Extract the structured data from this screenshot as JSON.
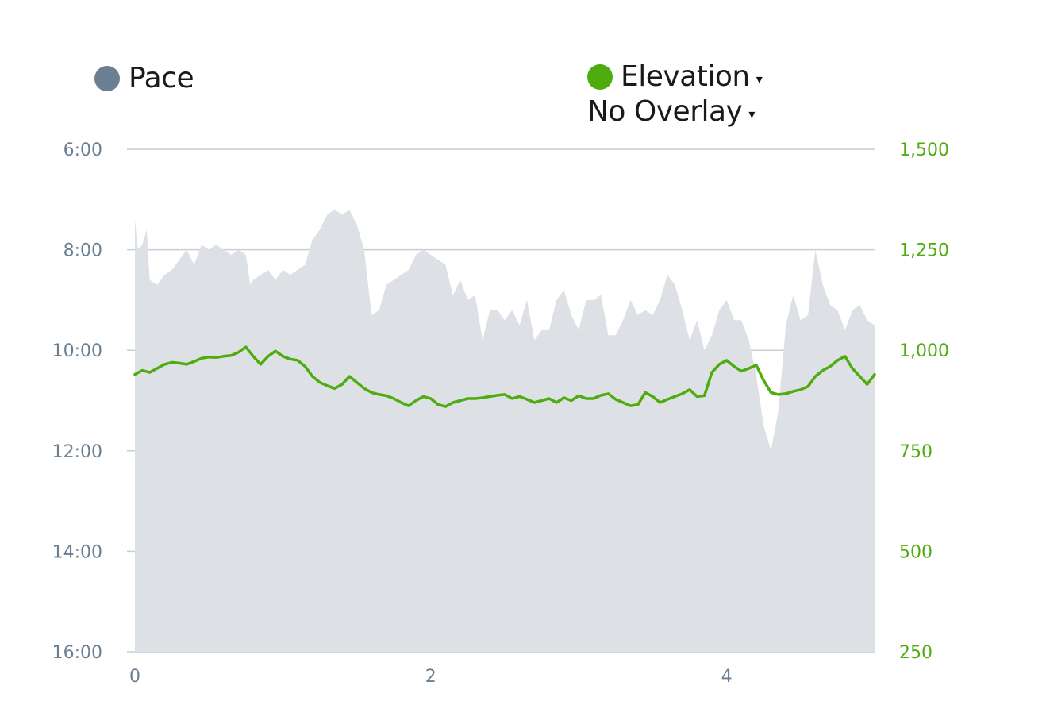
{
  "legend": {
    "pace_label": "Pace",
    "elevation_label": "Elevation",
    "overlay_label": "No Overlay",
    "caret": "▾"
  },
  "colors": {
    "pace_dot": "#6b7f92",
    "pace_fill": "#dde1e5",
    "elevation": "#4eac0e",
    "grid": "#c9ced3",
    "left_axis_text": "#6b7f92",
    "right_axis_text": "#4eac0e",
    "x_axis_text": "#6b7f92"
  },
  "chart_data": {
    "type": "area",
    "y_left": {
      "label": "",
      "ticks": [
        "6:00",
        "8:00",
        "10:00",
        "12:00",
        "14:00",
        "16:00"
      ],
      "tick_values_min": [
        6,
        8,
        10,
        12,
        14,
        16
      ],
      "range_min": [
        6,
        16
      ],
      "inverted": true
    },
    "y_right": {
      "label": "",
      "ticks": [
        "1,500",
        "1,250",
        "1,000",
        "750",
        "500",
        "250"
      ],
      "tick_values": [
        1500,
        1250,
        1000,
        750,
        500,
        250
      ],
      "range": [
        250,
        1500
      ]
    },
    "x": {
      "label": "",
      "ticks": [
        "0",
        "2",
        "4"
      ],
      "tick_values": [
        0,
        2,
        4
      ],
      "range": [
        0,
        5
      ]
    },
    "grid": true,
    "series": [
      {
        "name": "Pace",
        "type": "area",
        "axis": "left",
        "x": [
          0,
          0.02,
          0.05,
          0.08,
          0.1,
          0.15,
          0.2,
          0.25,
          0.3,
          0.35,
          0.4,
          0.45,
          0.5,
          0.55,
          0.6,
          0.65,
          0.7,
          0.75,
          0.78,
          0.8,
          0.85,
          0.9,
          0.95,
          1.0,
          1.05,
          1.1,
          1.15,
          1.2,
          1.25,
          1.3,
          1.35,
          1.4,
          1.45,
          1.5,
          1.55,
          1.6,
          1.65,
          1.7,
          1.75,
          1.8,
          1.85,
          1.9,
          1.95,
          2.0,
          2.05,
          2.1,
          2.15,
          2.2,
          2.25,
          2.3,
          2.35,
          2.4,
          2.45,
          2.5,
          2.55,
          2.6,
          2.65,
          2.7,
          2.75,
          2.8,
          2.85,
          2.9,
          2.95,
          3.0,
          3.05,
          3.1,
          3.15,
          3.2,
          3.25,
          3.3,
          3.35,
          3.4,
          3.45,
          3.5,
          3.55,
          3.6,
          3.65,
          3.7,
          3.75,
          3.8,
          3.85,
          3.9,
          3.95,
          4.0,
          4.05,
          4.1,
          4.15,
          4.2,
          4.25,
          4.3,
          4.35,
          4.4,
          4.45,
          4.5,
          4.55,
          4.6,
          4.65,
          4.7,
          4.75,
          4.8,
          4.85,
          4.9,
          4.95,
          5.0
        ],
        "values": [
          7.4,
          8.0,
          7.9,
          7.6,
          8.6,
          8.7,
          8.5,
          8.4,
          8.2,
          8.0,
          8.3,
          7.9,
          8.0,
          7.9,
          8.0,
          8.1,
          8.0,
          8.1,
          8.7,
          8.6,
          8.5,
          8.4,
          8.6,
          8.4,
          8.5,
          8.4,
          8.3,
          7.8,
          7.6,
          7.3,
          7.2,
          7.3,
          7.2,
          7.5,
          8.0,
          9.3,
          9.2,
          8.7,
          8.6,
          8.5,
          8.4,
          8.1,
          8.0,
          8.1,
          8.2,
          8.3,
          8.9,
          8.6,
          9.0,
          8.9,
          9.8,
          9.2,
          9.2,
          9.4,
          9.2,
          9.5,
          9.0,
          9.8,
          9.6,
          9.6,
          9.0,
          8.8,
          9.3,
          9.6,
          9.0,
          9.0,
          8.9,
          9.7,
          9.7,
          9.4,
          9.0,
          9.3,
          9.2,
          9.3,
          9.0,
          8.5,
          8.7,
          9.2,
          9.8,
          9.4,
          10.0,
          9.7,
          9.2,
          9.0,
          9.4,
          9.4,
          9.8,
          10.5,
          11.5,
          12.0,
          11.2,
          9.5,
          8.9,
          9.4,
          9.3,
          8.0,
          8.7,
          9.1,
          9.2,
          9.6,
          9.2,
          9.1,
          9.4,
          9.5
        ]
      },
      {
        "name": "Elevation",
        "type": "line",
        "axis": "right",
        "x": [
          0,
          0.05,
          0.1,
          0.15,
          0.2,
          0.25,
          0.3,
          0.35,
          0.4,
          0.45,
          0.5,
          0.55,
          0.6,
          0.65,
          0.7,
          0.75,
          0.8,
          0.85,
          0.9,
          0.95,
          1.0,
          1.05,
          1.1,
          1.15,
          1.2,
          1.25,
          1.3,
          1.35,
          1.4,
          1.45,
          1.5,
          1.55,
          1.6,
          1.65,
          1.7,
          1.75,
          1.8,
          1.85,
          1.9,
          1.95,
          2.0,
          2.05,
          2.1,
          2.15,
          2.2,
          2.25,
          2.3,
          2.35,
          2.4,
          2.45,
          2.5,
          2.55,
          2.6,
          2.65,
          2.7,
          2.75,
          2.8,
          2.85,
          2.9,
          2.95,
          3.0,
          3.05,
          3.1,
          3.15,
          3.2,
          3.25,
          3.3,
          3.35,
          3.4,
          3.45,
          3.5,
          3.55,
          3.6,
          3.65,
          3.7,
          3.75,
          3.8,
          3.85,
          3.9,
          3.95,
          4.0,
          4.05,
          4.1,
          4.15,
          4.2,
          4.25,
          4.3,
          4.35,
          4.4,
          4.45,
          4.5,
          4.55,
          4.6,
          4.65,
          4.7,
          4.75,
          4.8,
          4.85,
          4.9,
          4.95,
          5.0
        ],
        "values": [
          940,
          950,
          945,
          955,
          965,
          970,
          968,
          965,
          972,
          980,
          983,
          982,
          985,
          987,
          995,
          1008,
          985,
          965,
          985,
          998,
          985,
          978,
          975,
          960,
          935,
          920,
          912,
          905,
          915,
          935,
          920,
          905,
          895,
          890,
          887,
          880,
          870,
          862,
          875,
          885,
          880,
          865,
          860,
          870,
          875,
          880,
          880,
          882,
          885,
          888,
          890,
          880,
          885,
          878,
          870,
          875,
          880,
          870,
          882,
          875,
          887,
          880,
          880,
          888,
          892,
          878,
          870,
          862,
          865,
          895,
          885,
          870,
          878,
          885,
          892,
          902,
          885,
          887,
          945,
          965,
          975,
          960,
          948,
          955,
          963,
          925,
          895,
          890,
          892,
          898,
          902,
          910,
          935,
          950,
          960,
          975,
          985,
          955,
          935,
          915,
          940
        ]
      }
    ]
  }
}
